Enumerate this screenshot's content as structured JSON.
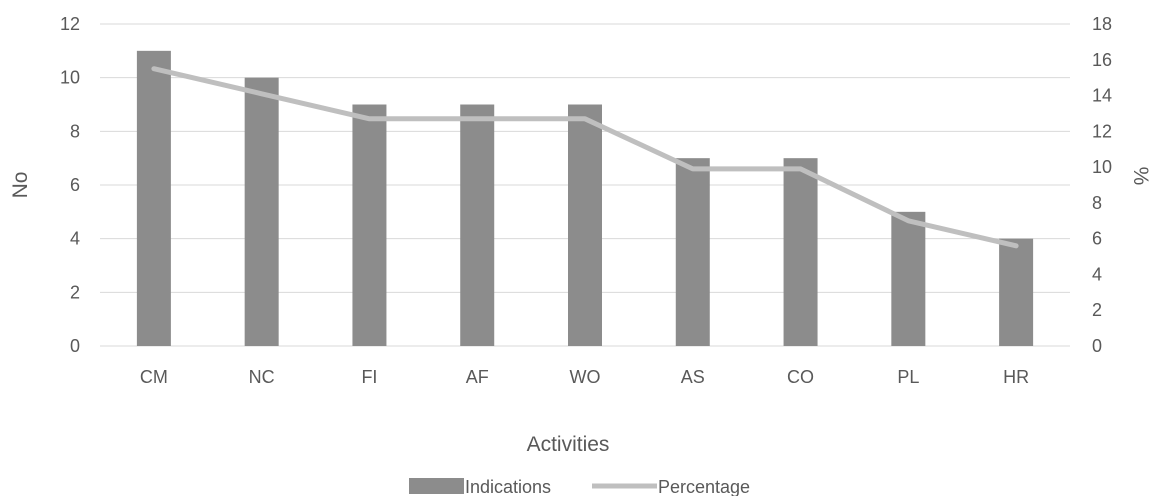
{
  "chart_data": {
    "type": "bar",
    "title": "",
    "categories": [
      "CM",
      "NC",
      "FI",
      "AF",
      "WO",
      "AS",
      "CO",
      "PL",
      "HR"
    ],
    "series": [
      {
        "name": "Indications",
        "type": "bar",
        "axis": "left",
        "values": [
          11,
          10,
          9,
          9,
          9,
          7,
          7,
          5,
          4
        ]
      },
      {
        "name": "Percentage",
        "type": "line",
        "axis": "right",
        "values": [
          15.5,
          14.1,
          12.7,
          12.7,
          12.7,
          9.9,
          9.9,
          7.0,
          5.6
        ]
      }
    ],
    "xlabel": "Activities",
    "ylabel": "No",
    "y2label": "%",
    "ylim": [
      0,
      12
    ],
    "y2lim": [
      0,
      18
    ],
    "yticks": [
      "0",
      "2",
      "4",
      "6",
      "8",
      "10",
      "12"
    ],
    "y2ticks": [
      "0",
      "2",
      "4",
      "6",
      "8",
      "10",
      "12",
      "14",
      "16",
      "18"
    ],
    "grid": true,
    "legend_position": "bottom",
    "colors": {
      "bar": "#8c8c8c",
      "line": "#bfbfbf",
      "grid": "#d9d9d9",
      "text": "#595959"
    }
  }
}
